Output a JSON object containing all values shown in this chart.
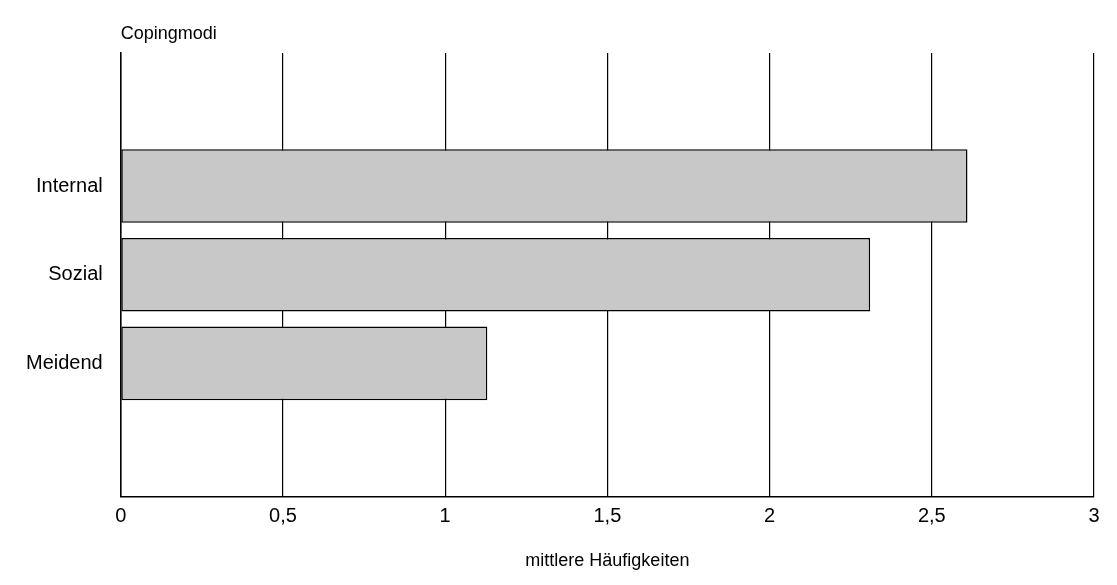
{
  "chart_data": {
    "type": "bar",
    "orientation": "horizontal",
    "ylabel": "Copingmodi",
    "xlabel": "mittlere Häufigkeiten",
    "categories": [
      null,
      "Internal",
      "Sozial",
      "Meidend",
      null
    ],
    "values": [
      null,
      2.61,
      2.31,
      1.13,
      null
    ],
    "color": "#c8c8c8",
    "xlim": [
      0,
      3
    ],
    "xticks": [
      0,
      {
        "value": 0.5,
        "label": "0,5"
      },
      1,
      {
        "value": 1.5,
        "label": "1,5"
      },
      2,
      {
        "value": 2.5,
        "label": "2,5"
      },
      3
    ],
    "grid": "x",
    "legend": false
  }
}
